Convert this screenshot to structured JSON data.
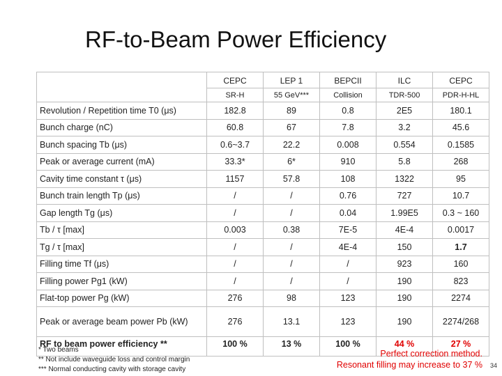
{
  "title": "RF-to-Beam Power Efficiency",
  "table": {
    "columns": [
      {
        "name": "CEPC",
        "sub": "SR-H"
      },
      {
        "name": "LEP 1",
        "sub": "55 GeV***"
      },
      {
        "name": "BEPCII",
        "sub": "Collision"
      },
      {
        "name": "ILC",
        "sub": "TDR-500"
      },
      {
        "name": "CEPC",
        "sub": "PDR-H-HL"
      }
    ],
    "rows": [
      {
        "label": "Revolution / Repetition time T0 (μs)",
        "values": [
          "182.8",
          "89",
          "0.8",
          "2E5",
          "180.1"
        ]
      },
      {
        "label": "Bunch charge (nC)",
        "values": [
          "60.8",
          "67",
          "7.8",
          "3.2",
          "45.6"
        ]
      },
      {
        "label": "Bunch spacing Tb (μs)",
        "values": [
          "0.6~3.7",
          "22.2",
          "0.008",
          "0.554",
          "0.1585"
        ]
      },
      {
        "label": "Peak or average current (mA)",
        "values": [
          "33.3*",
          "6*",
          "910",
          "5.8",
          "268"
        ]
      },
      {
        "label": "Cavity time constant τ (μs)",
        "values": [
          "1157",
          "57.8",
          "108",
          "1322",
          "95"
        ]
      },
      {
        "label": "Bunch train length Tp (μs)",
        "values": [
          "/",
          "/",
          "0.76",
          "727",
          "10.7"
        ]
      },
      {
        "label": "Gap length Tg (μs)",
        "values": [
          "/",
          "/",
          "0.04",
          "1.99E5",
          "0.3 ~ 160"
        ]
      },
      {
        "label": "Tb / τ [max]",
        "values": [
          "0.003",
          "0.38",
          "7E-5",
          "4E-4",
          "0.0017"
        ]
      },
      {
        "label": "Tg / τ [max]",
        "values": [
          "/",
          "/",
          "4E-4",
          "150",
          "1.7"
        ]
      },
      {
        "label": "Filling time Tf (μs)",
        "values": [
          "/",
          "/",
          "/",
          "923",
          "160"
        ]
      },
      {
        "label": "Filling power Pg1 (kW)",
        "values": [
          "/",
          "/",
          "/",
          "190",
          "823"
        ]
      },
      {
        "label": "Flat-top power Pg (kW)",
        "values": [
          "276",
          "98",
          "123",
          "190",
          "2274"
        ]
      },
      {
        "label": "Peak or average beam power Pb (kW)",
        "values": [
          "276",
          "13.1",
          "123",
          "190",
          "2274/268"
        ]
      },
      {
        "label": "RF to beam power efficiency **",
        "values": [
          "100 %",
          "13 %",
          "100 %",
          "44 %",
          "27 %"
        ]
      }
    ]
  },
  "footnotes": [
    "* Two beams",
    "** Not include waveguide loss and control margin",
    "*** Normal conducting cavity with storage cavity"
  ],
  "notes": [
    "Perfect correction method.",
    "Resonant filling may increase to 37 %"
  ],
  "page_number": "34"
}
